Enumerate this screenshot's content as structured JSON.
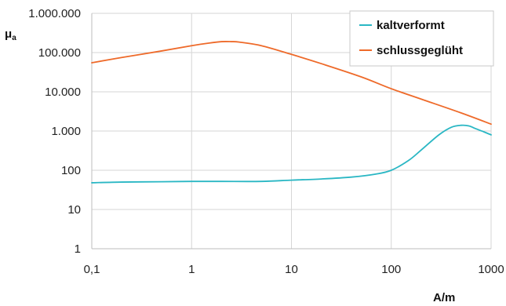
{
  "chart_data": {
    "type": "line",
    "title": "",
    "xlabel": "A/m",
    "ylabel": "μa",
    "ylabel_main": "μ",
    "ylabel_sub": "a",
    "xscale": "log",
    "yscale": "log",
    "xlim": [
      0.1,
      1000
    ],
    "ylim": [
      1,
      1000000
    ],
    "grid": true,
    "legend_position": "top-right",
    "x_ticks": [
      {
        "value": 0.1,
        "label": "0,1"
      },
      {
        "value": 1,
        "label": "1"
      },
      {
        "value": 10,
        "label": "10"
      },
      {
        "value": 100,
        "label": "100"
      },
      {
        "value": 1000,
        "label": "1000"
      }
    ],
    "y_ticks": [
      {
        "value": 1,
        "label": "1"
      },
      {
        "value": 10,
        "label": "10"
      },
      {
        "value": 100,
        "label": "100"
      },
      {
        "value": 1000,
        "label": "1.000"
      },
      {
        "value": 10000,
        "label": "10.000"
      },
      {
        "value": 100000,
        "label": "100.000"
      },
      {
        "value": 1000000,
        "label": "1.000.000"
      }
    ],
    "series": [
      {
        "name": "kaltverformt",
        "color": "#2ab7c4",
        "points": [
          [
            0.1,
            48
          ],
          [
            0.2,
            50
          ],
          [
            0.5,
            51
          ],
          [
            1,
            52
          ],
          [
            2,
            52
          ],
          [
            5,
            52
          ],
          [
            10,
            56
          ],
          [
            20,
            60
          ],
          [
            40,
            67
          ],
          [
            70,
            80
          ],
          [
            100,
            100
          ],
          [
            150,
            180
          ],
          [
            200,
            330
          ],
          [
            300,
            800
          ],
          [
            400,
            1250
          ],
          [
            500,
            1400
          ],
          [
            600,
            1350
          ],
          [
            700,
            1150
          ],
          [
            850,
            950
          ],
          [
            1000,
            800
          ]
        ]
      },
      {
        "name": "schlussgeglüht",
        "color": "#ee6a2a",
        "points": [
          [
            0.1,
            55000
          ],
          [
            0.2,
            75000
          ],
          [
            0.5,
            110000
          ],
          [
            1,
            150000
          ],
          [
            1.5,
            175000
          ],
          [
            2,
            190000
          ],
          [
            2.5,
            190000
          ],
          [
            3,
            185000
          ],
          [
            5,
            150000
          ],
          [
            10,
            90000
          ],
          [
            20,
            52000
          ],
          [
            50,
            24000
          ],
          [
            100,
            12000
          ],
          [
            200,
            6500
          ],
          [
            500,
            2900
          ],
          [
            1000,
            1500
          ]
        ]
      }
    ]
  }
}
